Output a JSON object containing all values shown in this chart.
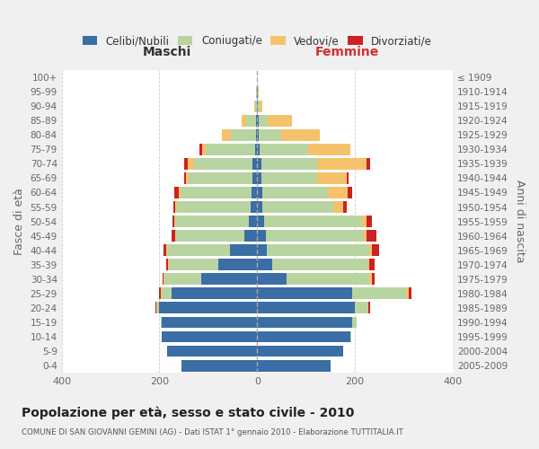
{
  "age_groups": [
    "0-4",
    "5-9",
    "10-14",
    "15-19",
    "20-24",
    "25-29",
    "30-34",
    "35-39",
    "40-44",
    "45-49",
    "50-54",
    "55-59",
    "60-64",
    "65-69",
    "70-74",
    "75-79",
    "80-84",
    "85-89",
    "90-94",
    "95-99",
    "100+"
  ],
  "birth_years": [
    "2005-2009",
    "2000-2004",
    "1995-1999",
    "1990-1994",
    "1985-1989",
    "1980-1984",
    "1975-1979",
    "1970-1974",
    "1965-1969",
    "1960-1964",
    "1955-1959",
    "1950-1954",
    "1945-1949",
    "1940-1944",
    "1935-1939",
    "1930-1934",
    "1925-1929",
    "1920-1924",
    "1915-1919",
    "1910-1914",
    "≤ 1909"
  ],
  "male_celibi": [
    155,
    185,
    195,
    195,
    200,
    175,
    115,
    80,
    55,
    26,
    17,
    14,
    12,
    10,
    10,
    5,
    3,
    2,
    1,
    1,
    0
  ],
  "male_coniugati": [
    0,
    0,
    1,
    2,
    5,
    20,
    75,
    100,
    130,
    140,
    150,
    150,
    145,
    130,
    120,
    100,
    50,
    20,
    3,
    1,
    0
  ],
  "male_vedovi": [
    0,
    0,
    0,
    0,
    2,
    3,
    2,
    2,
    2,
    2,
    2,
    3,
    4,
    5,
    12,
    8,
    20,
    10,
    2,
    0,
    0
  ],
  "male_divorziati": [
    0,
    0,
    0,
    0,
    2,
    2,
    2,
    4,
    5,
    7,
    5,
    5,
    8,
    4,
    8,
    5,
    0,
    0,
    0,
    0,
    0
  ],
  "fem_nubili": [
    150,
    175,
    190,
    195,
    200,
    195,
    60,
    30,
    20,
    18,
    14,
    10,
    10,
    8,
    8,
    5,
    4,
    3,
    1,
    1,
    0
  ],
  "fem_coniugate": [
    0,
    1,
    2,
    8,
    25,
    110,
    170,
    195,
    210,
    200,
    200,
    145,
    135,
    115,
    115,
    100,
    45,
    18,
    4,
    1,
    0
  ],
  "fem_vedove": [
    0,
    0,
    0,
    1,
    3,
    5,
    5,
    5,
    5,
    5,
    10,
    20,
    40,
    60,
    100,
    85,
    80,
    50,
    6,
    2,
    0
  ],
  "fem_divorziate": [
    0,
    0,
    0,
    0,
    3,
    5,
    5,
    10,
    15,
    20,
    10,
    8,
    10,
    4,
    8,
    0,
    0,
    0,
    0,
    0,
    0
  ],
  "color_celibi": "#3a6ea5",
  "color_coniugati": "#b8d4a0",
  "color_vedovi": "#f5c26b",
  "color_divorziati": "#cc2222",
  "xlim": 400,
  "xticks": [
    -400,
    -200,
    0,
    200,
    400
  ],
  "title": "Popolazione per età, sesso e stato civile - 2010",
  "subtitle": "COMUNE DI SAN GIOVANNI GEMINI (AG) - Dati ISTAT 1° gennaio 2010 - Elaborazione TUTTITALIA.IT",
  "ylabel_left": "Fasce di età",
  "ylabel_right": "Anni di nascita",
  "label_male": "Maschi",
  "label_female": "Femmine",
  "legend_labels": [
    "Celibi/Nubili",
    "Coniugati/e",
    "Vedovi/e",
    "Divorziati/e"
  ],
  "bg_color": "#f0f0f0",
  "plot_bg_color": "#ffffff",
  "male_label_color": "#333333",
  "female_label_color": "#cc3333",
  "grid_color": "#cccccc",
  "center_line_color": "#aaaaaa",
  "tick_label_color": "#666666"
}
